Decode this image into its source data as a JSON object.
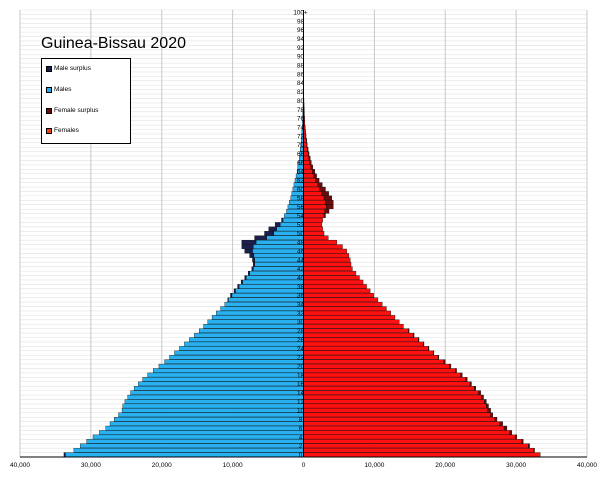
{
  "chart_data": {
    "type": "bar",
    "title": "Guinea-Bissau 2020",
    "xlim": [
      -40000,
      40000
    ],
    "x_tick_labels": [
      "40,000",
      "30,000",
      "20,000",
      "10,000",
      "0",
      "10,000",
      "20,000",
      "30,000",
      "40,000"
    ],
    "x_tick_values": [
      -40000,
      -30000,
      -20000,
      -10000,
      0,
      10000,
      20000,
      30000,
      40000
    ],
    "age_tick_labels": [
      "0",
      "2",
      "4",
      "6",
      "8",
      "10",
      "12",
      "14",
      "16",
      "18",
      "20",
      "22",
      "24",
      "26",
      "28",
      "30",
      "32",
      "34",
      "36",
      "38",
      "40",
      "42",
      "44",
      "46",
      "48",
      "50",
      "52",
      "54",
      "56",
      "58",
      "60",
      "62",
      "64",
      "66",
      "68",
      "70",
      "72",
      "74",
      "76",
      "78",
      "80",
      "82",
      "84",
      "86",
      "88",
      "90",
      "92",
      "94",
      "96",
      "98",
      "100+"
    ],
    "ages": [
      0,
      1,
      2,
      3,
      4,
      5,
      6,
      7,
      8,
      9,
      10,
      11,
      12,
      13,
      14,
      15,
      16,
      17,
      18,
      19,
      20,
      21,
      22,
      23,
      24,
      25,
      26,
      27,
      28,
      29,
      30,
      31,
      32,
      33,
      34,
      35,
      36,
      37,
      38,
      39,
      40,
      41,
      42,
      43,
      44,
      45,
      46,
      47,
      48,
      49,
      50,
      51,
      52,
      53,
      54,
      55,
      56,
      57,
      58,
      59,
      60,
      61,
      62,
      63,
      64,
      65,
      66,
      67,
      68,
      69,
      70,
      71,
      72,
      73,
      74,
      75,
      76,
      77,
      78,
      79,
      80,
      81,
      82,
      83,
      84,
      85,
      86,
      87,
      88,
      89,
      90,
      91,
      92,
      93,
      94,
      95,
      96,
      97,
      98,
      99,
      100
    ],
    "series": [
      {
        "name": "Males",
        "values": [
          33600,
          32400,
          31500,
          30600,
          29700,
          28800,
          27900,
          27300,
          26700,
          26100,
          25600,
          25500,
          25200,
          24800,
          24400,
          23900,
          23300,
          22700,
          22000,
          21200,
          20400,
          19600,
          18900,
          18200,
          17500,
          16800,
          16100,
          15400,
          14700,
          14100,
          13500,
          12900,
          12300,
          11700,
          11100,
          10600,
          10100,
          9600,
          9100,
          8600,
          8100,
          7600,
          7100,
          6900,
          6900,
          7000,
          7200,
          7100,
          6700,
          5200,
          4200,
          3800,
          3300,
          2900,
          2700,
          2400,
          2200,
          2000,
          1800,
          1650,
          1500,
          1350,
          1200,
          1050,
          900,
          800,
          700,
          600,
          520,
          450,
          390,
          330,
          280,
          230,
          190,
          160,
          130,
          100,
          80,
          65,
          50,
          38,
          28,
          20,
          15,
          10,
          7,
          5,
          3,
          2,
          1,
          1,
          0,
          0,
          0,
          0,
          0,
          0,
          0,
          0,
          0
        ]
      },
      {
        "name": "Females",
        "values": [
          33400,
          32500,
          31700,
          30800,
          29900,
          29100,
          28300,
          27700,
          27000,
          26400,
          26000,
          25800,
          25500,
          25100,
          24700,
          24100,
          23500,
          22900,
          22200,
          21400,
          20600,
          19800,
          19000,
          18300,
          17600,
          16900,
          16200,
          15500,
          14800,
          14100,
          13500,
          12900,
          12300,
          11700,
          11100,
          10500,
          9900,
          9400,
          8900,
          8400,
          7900,
          7400,
          6900,
          6700,
          6600,
          6400,
          6100,
          5500,
          4700,
          3500,
          2900,
          2700,
          2600,
          2700,
          2900,
          3000,
          3200,
          3100,
          2900,
          2600,
          2300,
          2000,
          1700,
          1450,
          1250,
          1050,
          900,
          770,
          650,
          550,
          460,
          390,
          320,
          260,
          210,
          170,
          140,
          110,
          90,
          70,
          55,
          42,
          32,
          24,
          17,
          12,
          8,
          6,
          4,
          3,
          2,
          1,
          1,
          0,
          0,
          0,
          0,
          0,
          0,
          0,
          0
        ]
      },
      {
        "name": "Male surplus",
        "values": [
          200,
          0,
          0,
          0,
          0,
          0,
          0,
          0,
          0,
          0,
          0,
          0,
          0,
          0,
          0,
          0,
          0,
          0,
          0,
          0,
          0,
          0,
          0,
          0,
          0,
          0,
          0,
          0,
          0,
          0,
          0,
          0,
          0,
          0,
          0,
          100,
          200,
          200,
          200,
          200,
          200,
          200,
          200,
          200,
          300,
          600,
          1100,
          1600,
          2000,
          1700,
          1300,
          1100,
          700,
          200,
          0,
          0,
          0,
          0,
          0,
          0,
          0,
          0,
          0,
          0,
          0,
          0,
          0,
          0,
          0,
          0,
          0,
          0,
          0,
          0,
          0,
          0,
          0,
          0,
          0,
          0,
          0,
          0,
          0,
          0,
          0,
          0,
          0,
          0,
          0,
          0,
          0,
          0,
          0,
          0,
          0,
          0,
          0,
          0,
          0,
          0,
          0
        ]
      },
      {
        "name": "Female surplus",
        "values": [
          0,
          100,
          200,
          200,
          200,
          300,
          400,
          400,
          300,
          300,
          400,
          300,
          300,
          300,
          300,
          200,
          200,
          200,
          200,
          200,
          200,
          200,
          100,
          100,
          100,
          100,
          100,
          100,
          100,
          0,
          0,
          0,
          0,
          0,
          0,
          0,
          0,
          0,
          0,
          0,
          0,
          0,
          0,
          0,
          0,
          0,
          0,
          0,
          0,
          0,
          0,
          0,
          0,
          0,
          200,
          600,
          1000,
          1100,
          1100,
          950,
          800,
          650,
          500,
          400,
          350,
          250,
          200,
          170,
          130,
          100,
          70,
          60,
          40,
          30,
          20,
          10,
          10,
          10,
          10,
          5,
          5,
          4,
          4,
          4,
          2,
          2,
          1,
          1,
          1,
          1,
          1,
          0,
          1,
          0,
          0,
          0,
          0,
          0,
          0,
          0,
          0
        ]
      }
    ],
    "legend": {
      "placement": "top-left",
      "entries": [
        {
          "label": "Male surplus",
          "color": "#1a1f4d"
        },
        {
          "label": "Males",
          "color": "#2aa8e8"
        },
        {
          "label": "Female surplus",
          "color": "#6b0d0d"
        },
        {
          "label": "Females",
          "color": "#e83f1e"
        }
      ]
    },
    "colors": {
      "males": "#28b0f0",
      "females": "#ff1010",
      "male_surplus": "#1a1f4d",
      "female_surplus": "#6b0d0d",
      "grid": "#c8c8c8"
    },
    "grid": true
  }
}
